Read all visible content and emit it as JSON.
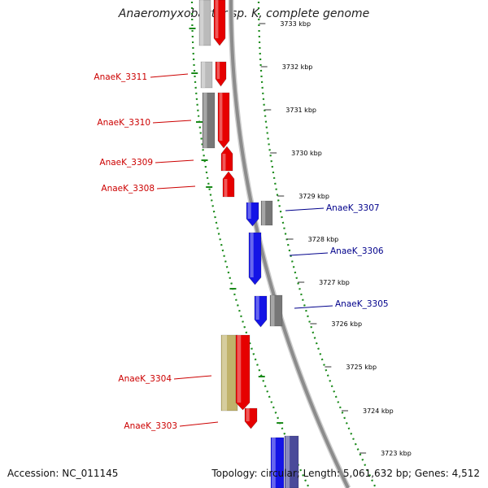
{
  "header": {
    "title": "Anaeromyxobacter sp. K, complete genome"
  },
  "footer": {
    "accession": "Accession: NC_011145",
    "topology": "Topology: circular; Length: 5,061,632 bp; Genes: 4,512"
  },
  "colors": {
    "backbone": "#8c8c8c",
    "dotted_ring": "#1a8a1a",
    "plus_gene": "#e60000",
    "plus_label": "#cc0000",
    "minus_gene": "#1414e6",
    "minus_label": "#00008b",
    "other_feature_gray": "#777777",
    "other_feature_lightgray": "#bbbbbb",
    "other_feature_khaki": "#c0b26a",
    "other_feature_slate": "#4a4a9a"
  },
  "tick_labels": [
    "3733 kbp",
    "3732 kbp",
    "3731 kbp",
    "3730 kbp",
    "3729 kbp",
    "3728 kbp",
    "3727 kbp",
    "3726 kbp",
    "3725 kbp",
    "3724 kbp",
    "3723 kbp"
  ],
  "genes": [
    {
      "id": "AnaeK_3311",
      "strand": "plus"
    },
    {
      "id": "AnaeK_3310",
      "strand": "plus"
    },
    {
      "id": "AnaeK_3309",
      "strand": "plus"
    },
    {
      "id": "AnaeK_3308",
      "strand": "plus"
    },
    {
      "id": "AnaeK_3307",
      "strand": "minus"
    },
    {
      "id": "AnaeK_3306",
      "strand": "minus"
    },
    {
      "id": "AnaeK_3305",
      "strand": "minus"
    },
    {
      "id": "AnaeK_3304",
      "strand": "plus"
    },
    {
      "id": "AnaeK_3303",
      "strand": "plus"
    }
  ]
}
